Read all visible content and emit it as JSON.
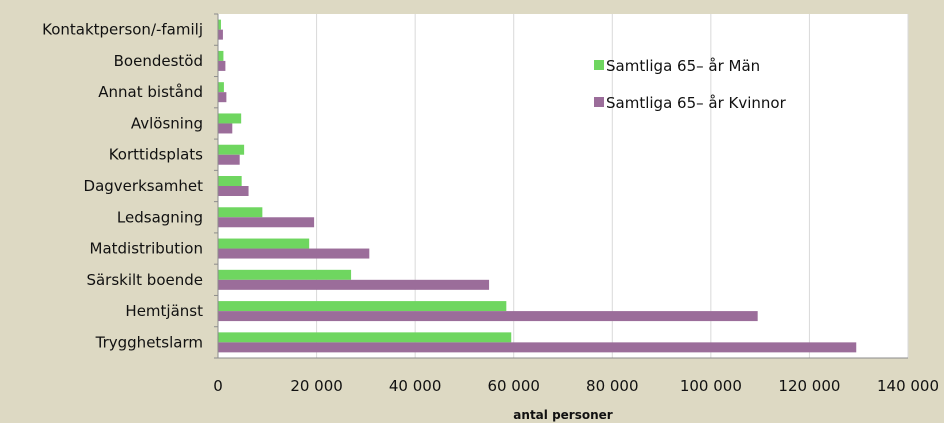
{
  "chart_data": {
    "type": "bar",
    "orientation": "horizontal",
    "categories": [
      "Trygghetslarm",
      "Hemtjänst",
      "Särskilt boende",
      "Matdistribution",
      "Ledsagning",
      "Dagverksamhet",
      "Korttidsplats",
      "Avlösning",
      "Annat bistånd",
      "Boendestöd",
      "Kontaktperson/-familj"
    ],
    "series": [
      {
        "name": "Samtliga 65– år Män",
        "color": "#6fd660",
        "values": [
          59500,
          58500,
          27000,
          18500,
          9000,
          4800,
          5300,
          4700,
          1200,
          1100,
          600
        ]
      },
      {
        "name": "Samtliga 65– år Kvinnor",
        "color": "#9b6d9a",
        "values": [
          129500,
          109500,
          55000,
          30700,
          19500,
          6200,
          4400,
          2900,
          1700,
          1500,
          1000
        ]
      }
    ],
    "xlabel": "antal personer",
    "xlim": [
      0,
      140000
    ],
    "xticks": [
      0,
      20000,
      40000,
      60000,
      80000,
      100000,
      120000,
      140000
    ],
    "xtick_labels": [
      "0",
      "20 000",
      "40 000",
      "60 000",
      "80 000",
      "100 000",
      "120 000",
      "140 000"
    ],
    "grid": "vertical",
    "legend_position": "top-right-inside"
  },
  "colors": {
    "background": "#ddd9c3",
    "plot_background": "#ffffff",
    "gridline": "#d9d9d9"
  }
}
